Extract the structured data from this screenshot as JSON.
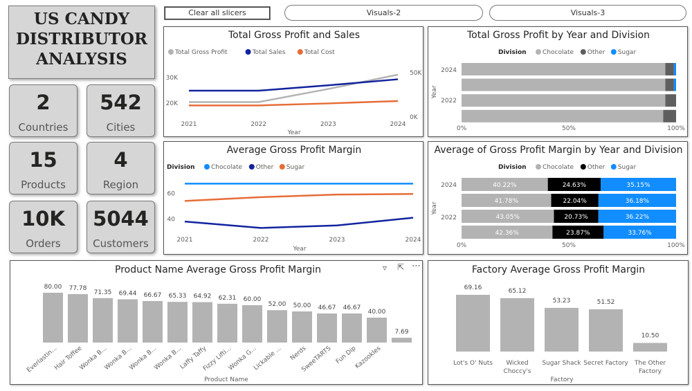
{
  "header": {
    "title_lines": [
      "US CANDY",
      "DISTRIBUTOR",
      "ANALYSIS"
    ],
    "clear_button": "Clear all slicers",
    "nav_buttons": [
      "Visuals-2",
      "Visuals-3"
    ]
  },
  "kpis": [
    {
      "value": "2",
      "label": "Countries"
    },
    {
      "value": "542",
      "label": "Cities"
    },
    {
      "value": "15",
      "label": "Products"
    },
    {
      "value": "4",
      "label": "Region"
    },
    {
      "value": "10K",
      "label": "Orders"
    },
    {
      "value": "5044",
      "label": "Customers"
    }
  ],
  "colors": {
    "gray": "#b3b3b3",
    "navy": "#12239e",
    "orange": "#e66c37",
    "blue": "#118dff",
    "dark": "#5f5f5f",
    "black": "#000000"
  },
  "chart_data": [
    {
      "id": "profit_sales",
      "type": "line",
      "title": "Total Gross Profit and Sales",
      "xlabel": "Year",
      "x": [
        "2021",
        "2022",
        "2023",
        "2024"
      ],
      "y_left_ticks": [
        "30K",
        "20K"
      ],
      "y_left_range": [
        15000,
        33000
      ],
      "y_right_ticks": [
        "50K",
        "0K"
      ],
      "y_right_range": [
        0,
        64000
      ],
      "series": [
        {
          "name": "Total Gross Profit",
          "axis": "left",
          "color": "#b3b3b3",
          "values": [
            19500,
            19500,
            25000,
            31000
          ]
        },
        {
          "name": "Total Sales",
          "axis": "right",
          "color": "#12239e",
          "values": [
            33000,
            33000,
            41000,
            50000
          ]
        },
        {
          "name": "Total Cost",
          "axis": "right",
          "color": "#e66c37",
          "values": [
            11000,
            11000,
            14000,
            17500
          ]
        }
      ]
    },
    {
      "id": "profit_division",
      "type": "bar",
      "title": "Total Gross Profit by Year and Division",
      "legend_title": "Division",
      "ylabel": "Year",
      "y_ticks": [
        "2024",
        "2022"
      ],
      "x_ticks": [
        "0%",
        "50%",
        "100%"
      ],
      "series": [
        {
          "name": "Chocolate",
          "color": "#b3b3b3",
          "values": [
            0.95,
            0.95,
            0.95,
            0.94
          ]
        },
        {
          "name": "Other",
          "color": "#5f5f5f",
          "values": [
            0.04,
            0.04,
            0.05,
            0.06
          ]
        },
        {
          "name": "Sugar",
          "color": "#118dff",
          "values": [
            0.01,
            0.01,
            0.0,
            0.0
          ]
        }
      ]
    },
    {
      "id": "avg_margin",
      "type": "line",
      "title": "Average Gross Profit Margin",
      "legend_title": "Division",
      "xlabel": "Year",
      "x": [
        "2021",
        "2022",
        "2023",
        "2024"
      ],
      "y_ticks": [
        "60",
        "40"
      ],
      "y_range": [
        30,
        72
      ],
      "series": [
        {
          "name": "Chocolate",
          "color": "#118dff",
          "values": [
            67.5,
            67.5,
            67.5,
            67.5
          ]
        },
        {
          "name": "Other",
          "color": "#12239e",
          "values": [
            38,
            33,
            35,
            41
          ]
        },
        {
          "name": "Sugar",
          "color": "#e66c37",
          "values": [
            54,
            57,
            59,
            59.5
          ]
        }
      ]
    },
    {
      "id": "margin_division",
      "type": "bar",
      "title": "Average of Gross Profit Margin by Year and Division",
      "legend_title": "Division",
      "ylabel": "Year",
      "y_ticks": [
        "2024",
        "2022"
      ],
      "x_ticks": [
        "0%",
        "50%",
        "100%"
      ],
      "series": [
        {
          "name": "Chocolate",
          "color": "#b3b3b3",
          "values": [
            40.22,
            41.78,
            43.05,
            42.36
          ],
          "labels": [
            "40.22%",
            "41.78%",
            "43.05%",
            "42.36%"
          ]
        },
        {
          "name": "Other",
          "color": "#000000",
          "values": [
            24.63,
            22.04,
            20.73,
            23.87
          ],
          "labels": [
            "24.63%",
            "22.04%",
            "20.73%",
            "23.87%"
          ]
        },
        {
          "name": "Sugar",
          "color": "#118dff",
          "values": [
            35.15,
            36.18,
            36.22,
            33.76
          ],
          "labels": [
            "35.15%",
            "36.18%",
            "36.22%",
            "33.76%"
          ]
        }
      ]
    },
    {
      "id": "product_margin",
      "type": "bar",
      "title": "Product Name Average Gross Profit Margin",
      "xlabel": "Product Name",
      "categories": [
        "Everlastin...",
        "Hair Toffee",
        "Wonka B...",
        "Wonka B...",
        "Wonka B...",
        "Wonka B...",
        "Laffy Taffy",
        "Fizzy Lifti...",
        "Wonka G...",
        "Lickable ...",
        "Nerds",
        "SweeTARTS",
        "Fun Dip",
        "Kazookles"
      ],
      "values": [
        80.0,
        77.78,
        71.35,
        69.44,
        66.67,
        65.33,
        64.92,
        62.31,
        60.0,
        52.0,
        50.0,
        46.67,
        46.67,
        40.0
      ],
      "labels": [
        "80.00",
        "77.78",
        "71.35",
        "69.44",
        "66.67",
        "65.33",
        "64.92",
        "62.31",
        "60.00",
        "52.00",
        "50.00",
        "46.67",
        "46.67",
        "40.00",
        "7.69"
      ],
      "extra_value": 7.69,
      "color": "#b3b3b3"
    },
    {
      "id": "factory_margin",
      "type": "bar",
      "title": "Factory Average Gross Profit Margin",
      "xlabel": "Factory",
      "categories": [
        [
          "Lot's O' Nuts"
        ],
        [
          "Wicked",
          "Choccy's"
        ],
        [
          "Sugar Shack"
        ],
        [
          "Secret Factory"
        ],
        [
          "The Other",
          "Factory"
        ]
      ],
      "values": [
        69.16,
        65.12,
        53.23,
        51.52,
        10.5
      ],
      "labels": [
        "69.16",
        "65.12",
        "53.23",
        "51.52",
        "10.50"
      ],
      "color": "#b3b3b3"
    }
  ]
}
